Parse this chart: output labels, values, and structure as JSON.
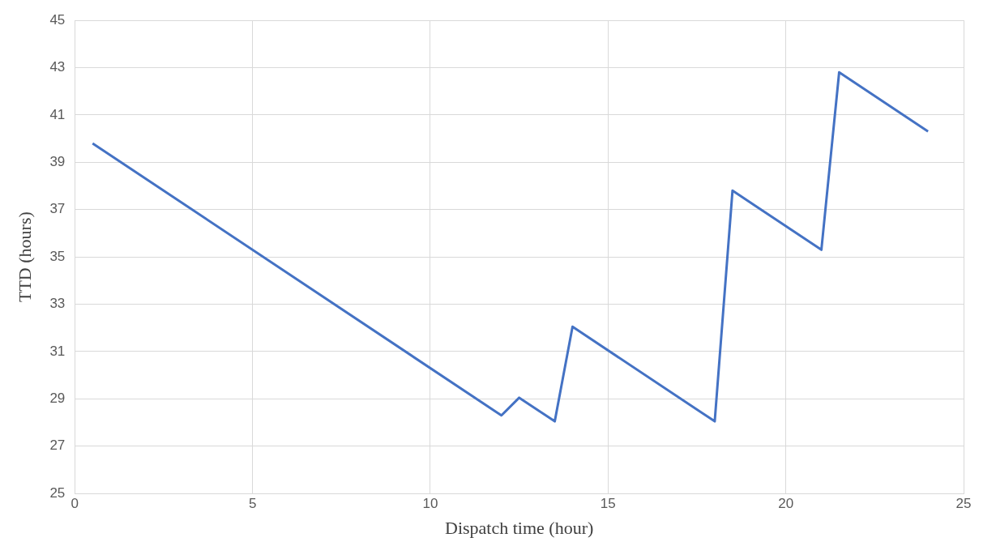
{
  "chart_data": {
    "type": "line",
    "xlabel": "Dispatch time (hour)",
    "ylabel": "TTD (hours)",
    "x": [
      0.5,
      12,
      12.5,
      13.5,
      14,
      18,
      18.5,
      21,
      21.5,
      24
    ],
    "series": [
      {
        "color": "#4472c4",
        "values": [
          39.8,
          28.3,
          29.05,
          28.05,
          32.05,
          28.05,
          37.8,
          35.3,
          42.8,
          40.3
        ]
      }
    ],
    "xlim": [
      0,
      25
    ],
    "xticks": [
      0,
      5,
      10,
      15,
      20,
      25
    ],
    "ylim": [
      25,
      45
    ],
    "yticks": [
      25,
      27,
      29,
      31,
      33,
      35,
      37,
      39,
      41,
      43,
      45
    ],
    "grid": true,
    "marker": "none",
    "line_style": "solid",
    "legend": false
  }
}
